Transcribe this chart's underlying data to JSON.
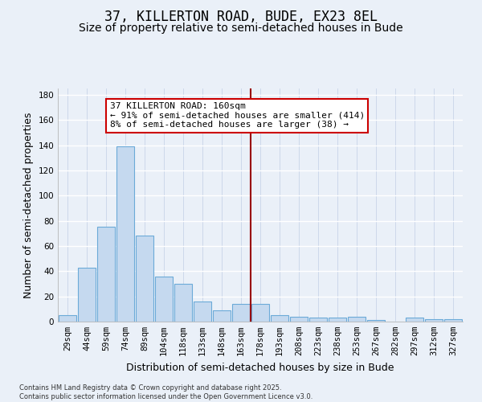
{
  "title": "37, KILLERTON ROAD, BUDE, EX23 8EL",
  "subtitle": "Size of property relative to semi-detached houses in Bude",
  "xlabel": "Distribution of semi-detached houses by size in Bude",
  "ylabel": "Number of semi-detached properties",
  "categories": [
    "29sqm",
    "44sqm",
    "59sqm",
    "74sqm",
    "89sqm",
    "104sqm",
    "118sqm",
    "133sqm",
    "148sqm",
    "163sqm",
    "178sqm",
    "193sqm",
    "208sqm",
    "223sqm",
    "238sqm",
    "253sqm",
    "267sqm",
    "282sqm",
    "297sqm",
    "312sqm",
    "327sqm"
  ],
  "values": [
    5,
    43,
    75,
    139,
    68,
    36,
    30,
    16,
    9,
    14,
    14,
    5,
    4,
    3,
    3,
    4,
    1,
    0,
    3,
    2,
    2
  ],
  "bar_color": "#c5d9ef",
  "bar_edge_color": "#6baad8",
  "ylim": [
    0,
    185
  ],
  "yticks": [
    0,
    20,
    40,
    60,
    80,
    100,
    120,
    140,
    160,
    180
  ],
  "vline_x_idx": 9.5,
  "vline_color": "#990000",
  "annotation_title": "37 KILLERTON ROAD: 160sqm",
  "annotation_line1": "← 91% of semi-detached houses are smaller (414)",
  "annotation_line2": "8% of semi-detached houses are larger (38) →",
  "annotation_box_color": "#cc0000",
  "footer1": "Contains HM Land Registry data © Crown copyright and database right 2025.",
  "footer2": "Contains public sector information licensed under the Open Government Licence v3.0.",
  "bg_color": "#eaf0f8",
  "grid_color": "#c8d4e8",
  "title_fontsize": 12,
  "subtitle_fontsize": 10,
  "axis_label_fontsize": 9,
  "tick_fontsize": 7.5
}
